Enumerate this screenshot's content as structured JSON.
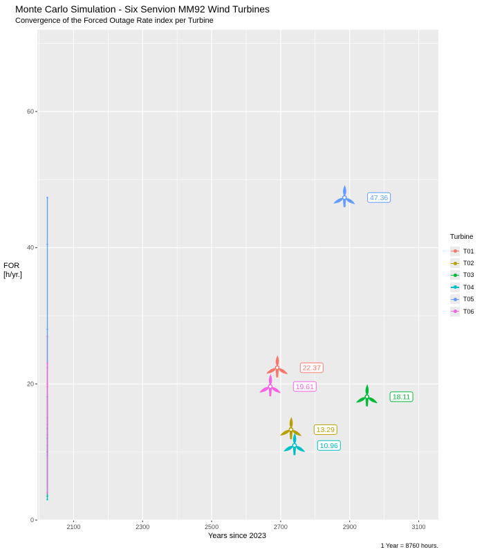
{
  "header": {
    "title": "Monte Carlo Simulation - Six Senvion MM92 Wind Turbines",
    "subtitle": "Convergence of the Forced Outage Rate index per Turbine"
  },
  "caption": "1 Year = 8760 hours.",
  "legend": {
    "title": "Turbine"
  },
  "chart_data": {
    "type": "line",
    "title": "Monte Carlo Simulation - Six Senvion MM92 Wind Turbines",
    "subtitle": "Convergence of the Forced Outage Rate index per Turbine",
    "xlabel": "Years since 2023",
    "ylabel": "FOR\n[h/yr.]",
    "xlim": [
      1995,
      3157
    ],
    "ylim": [
      0,
      72
    ],
    "x_ticks": [
      2100,
      2300,
      2500,
      2700,
      2900,
      3100
    ],
    "y_ticks": [
      0,
      20,
      40,
      60
    ],
    "grid": true,
    "legend_position": "right",
    "series": [
      {
        "name": "T01",
        "color": "#F8766D",
        "x": [
          2024,
          2024,
          2024,
          2024
        ],
        "y": [
          14.0,
          27.0,
          20.0,
          22.37
        ],
        "icon": {
          "x": 2690,
          "y": 22.37
        },
        "label": {
          "x": 2790,
          "y": 22.37,
          "text": "22.37"
        }
      },
      {
        "name": "T02",
        "color": "#B79F00",
        "x": [
          2024,
          2024,
          2024,
          2024
        ],
        "y": [
          10.0,
          15.0,
          12.5,
          13.29
        ],
        "icon": {
          "x": 2730,
          "y": 13.29
        },
        "label": {
          "x": 2830,
          "y": 13.29,
          "text": "13.29"
        }
      },
      {
        "name": "T03",
        "color": "#00BA38",
        "x": [
          2024,
          2024,
          2024,
          2024
        ],
        "y": [
          3.5,
          13.5,
          12.0,
          18.11
        ],
        "icon": {
          "x": 2950,
          "y": 18.11
        },
        "label": {
          "x": 3050,
          "y": 18.11,
          "text": "18.11"
        }
      },
      {
        "name": "T04",
        "color": "#00BFC4",
        "x": [
          2024,
          2024,
          2024,
          2024
        ],
        "y": [
          3.0,
          12.0,
          10.0,
          10.96
        ],
        "icon": {
          "x": 2740,
          "y": 10.96
        },
        "label": {
          "x": 2840,
          "y": 10.96,
          "text": "10.96"
        }
      },
      {
        "name": "T05",
        "color": "#619CFF",
        "x": [
          2024,
          2024,
          2024,
          2024
        ],
        "y": [
          9.5,
          40.5,
          28.0,
          47.36
        ],
        "icon": {
          "x": 2885,
          "y": 47.36
        },
        "label": {
          "x": 2985,
          "y": 47.36,
          "text": "47.36"
        }
      },
      {
        "name": "T06",
        "color": "#F564E3",
        "x": [
          2024,
          2024,
          2024,
          2024
        ],
        "y": [
          4.0,
          23.0,
          17.5,
          19.61
        ],
        "icon": {
          "x": 2670,
          "y": 19.61
        },
        "label": {
          "x": 2770,
          "y": 19.61,
          "text": "19.61"
        }
      }
    ]
  }
}
